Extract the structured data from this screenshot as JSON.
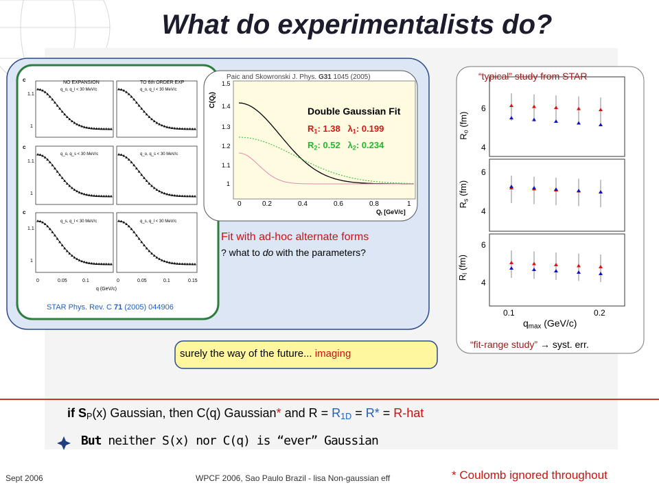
{
  "title": "What do experimentalists do?",
  "left_figure": {
    "panel_titles": [
      "NO EXPANSION",
      "TO 6th ORDER EXP"
    ],
    "cuts": [
      "q_o, q_l < 30 MeV/c",
      "q_o, q_l < 30 MeV/c",
      "q_o, q_s < 30 MeV/c",
      "q_o, q_s < 30 MeV/c",
      "q_s, q_l < 30 MeV/c",
      "q_s, q_l < 30 MeV/c"
    ],
    "y_axis_label": "c",
    "y_ticks": [
      "1.1",
      "1"
    ],
    "x_ticks": [
      "0",
      "0.05",
      "0.1",
      "0.15"
    ],
    "x_label": "q (GeV/c)",
    "citation": {
      "journal": "STAR Phys. Rev. C ",
      "volume": "71",
      "rest": " (2005) 044906"
    }
  },
  "middle_figure": {
    "citation": {
      "authors": "Paic and Skowronski J. Phys. ",
      "volume": "G31",
      "rest": " 1045 (2005)"
    },
    "fit_title": "Double Gaussian Fit",
    "fit1": {
      "r": "R",
      "r_sub": "1",
      "r_value": ": 1.38",
      "l": "λ",
      "l_sub": "1",
      "l_value": ": 0.199"
    },
    "fit2": {
      "r": "R",
      "r_sub": "2",
      "r_value": ": 0.52",
      "l": "λ",
      "l_sub": "2",
      "l_value": ": 0.234"
    },
    "y_label": "C(Q",
    "y_label_sub": "I",
    "y_label_end": ")",
    "y_ticks": [
      "1.5",
      "1.4",
      "1.3",
      "1.2",
      "1.1",
      "1"
    ],
    "x_ticks": [
      "0",
      "0.2",
      "0.4",
      "0.6",
      "0.8",
      "1"
    ],
    "x_label": "Q",
    "x_label_sub": "I",
    "x_label_end": " [GeV/c]"
  },
  "fit_caption": {
    "line1": "Fit with ad-hoc alternate forms",
    "line2_a": "? what to ",
    "line2_b": "do",
    "line2_c": " with the parameters?"
  },
  "right_figure": {
    "title": "“typical” study from STAR",
    "y_labels": [
      {
        "main": "R",
        "sub": "o",
        "unit": " (fm)"
      },
      {
        "main": "R",
        "sub": "s",
        "unit": " (fm)"
      },
      {
        "main": "R",
        "sub": "l",
        "unit": " (fm)"
      }
    ],
    "y_ticks": [
      "6",
      "4"
    ],
    "x_ticks": [
      "0.1",
      "0.2"
    ],
    "x_label": "q",
    "x_label_sub": "max",
    "x_label_end": " (GeV/c)",
    "footer_a": "“fit-range study” ",
    "footer_arrow": "→",
    "footer_b": " syst. err."
  },
  "button": {
    "text": "surely the way of the future... ",
    "highlight": "imaging"
  },
  "bullets": {
    "first": {
      "a": "if S",
      "a_sub": "P",
      "b": "(x) Gaussian, then C(q) Gaussian",
      "star": "*",
      "c": " and R = ",
      "r1d": "R",
      "r1d_sub": "1D",
      "eq1": " = ",
      "rstar": "R*",
      "eq2": " = ",
      "rhat": "R-hat"
    },
    "second": {
      "bold": "But",
      "rest": " neither S(x) nor C(q) is “ever” Gaussian"
    }
  },
  "footer": {
    "date": "Sept 2006",
    "conference": "WPCF 2006, Sao Paulo Brazil - lisa Non-gaussian eff",
    "note": "* Coulomb ignored throughout"
  }
}
